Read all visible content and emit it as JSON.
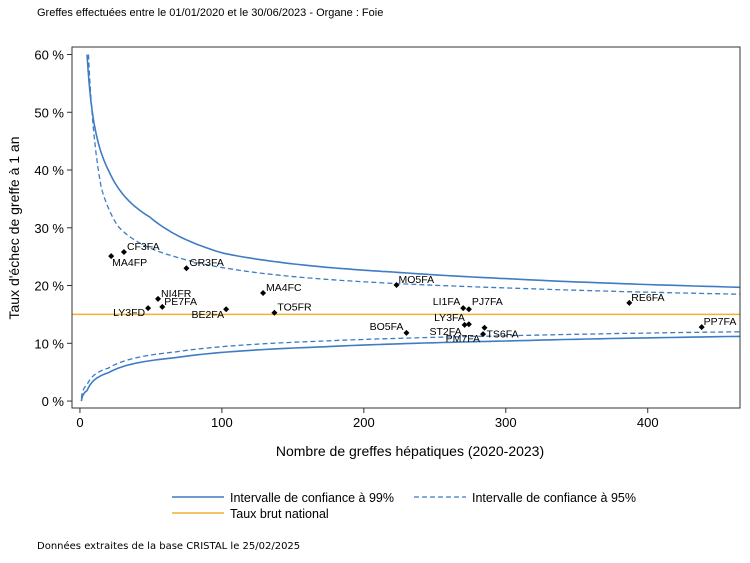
{
  "chart_data": {
    "type": "scatter",
    "title": "Greffes effectuées entre le 01/01/2020 et le 30/06/2023 - Organe : Foie",
    "xlabel": "Nombre de greffes hépatiques (2020-2023)",
    "ylabel": "Taux d'échec de greffe à 1 an",
    "xlim": [
      -5.6,
      465
    ],
    "ylim": [
      -1.2,
      61.3
    ],
    "xticks": [
      0,
      100,
      200,
      300,
      400
    ],
    "xtick_labels": [
      "0",
      "100",
      "200",
      "300",
      "400"
    ],
    "yticks": [
      0,
      10,
      20,
      30,
      40,
      50,
      60
    ],
    "ytick_labels": [
      "0 %",
      "10 %",
      "20 %",
      "30 %",
      "40 %",
      "50 %",
      "60 %"
    ],
    "national_rate": 15,
    "points": [
      {
        "label": "MA4FP",
        "n": 22,
        "rate": 25.1
      },
      {
        "label": "CF3FA",
        "n": 31,
        "rate": 25.8
      },
      {
        "label": "GR3FA",
        "n": 75,
        "rate": 23.0
      },
      {
        "label": "NI4FR",
        "n": 55,
        "rate": 17.7
      },
      {
        "label": "PE7FA",
        "n": 58,
        "rate": 16.3
      },
      {
        "label": "LY3FD",
        "n": 48,
        "rate": 16.1
      },
      {
        "label": "BE2FA",
        "n": 103,
        "rate": 15.9
      },
      {
        "label": "MA4FC",
        "n": 129,
        "rate": 18.7
      },
      {
        "label": "TO5FR",
        "n": 137,
        "rate": 15.3
      },
      {
        "label": "MO5FA",
        "n": 223,
        "rate": 20.1
      },
      {
        "label": "LI1FA",
        "n": 270,
        "rate": 16.1
      },
      {
        "label": "PJ7FA",
        "n": 274,
        "rate": 15.9
      },
      {
        "label": "LY3FA",
        "n": 274,
        "rate": 13.3
      },
      {
        "label": "ST2FA",
        "n": 271,
        "rate": 13.2
      },
      {
        "label": "PM7FA",
        "n": 284,
        "rate": 11.6
      },
      {
        "label": "TS6FA",
        "n": 285,
        "rate": 12.7
      },
      {
        "label": "BO5FA",
        "n": 230,
        "rate": 11.8
      },
      {
        "label": "RE6FA",
        "n": 387,
        "rate": 17.0
      },
      {
        "label": "PP7FA",
        "n": 438,
        "rate": 12.8
      }
    ],
    "curves": {
      "upper99": [
        [
          5,
          60
        ],
        [
          10,
          48
        ],
        [
          20,
          40
        ],
        [
          49,
          31.9
        ],
        [
          101,
          25.6
        ],
        [
          172,
          23.2
        ],
        [
          223,
          22.3
        ],
        [
          300,
          21.2
        ],
        [
          465,
          19.7
        ]
      ],
      "upper95": [
        [
          6,
          60
        ],
        [
          15,
          37
        ],
        [
          27,
          30.2
        ],
        [
          67,
          25
        ],
        [
          172,
          21.1
        ],
        [
          300,
          19.6
        ],
        [
          465,
          18.5
        ]
      ],
      "lower99": [
        [
          1,
          0
        ],
        [
          5,
          1.8
        ],
        [
          20,
          4.9
        ],
        [
          67,
          7.5
        ],
        [
          172,
          9.4
        ],
        [
          300,
          10.4
        ],
        [
          465,
          11.2
        ]
      ],
      "lower95": [
        [
          1,
          0.5
        ],
        [
          5,
          2.8
        ],
        [
          20,
          5.7
        ],
        [
          67,
          8.5
        ],
        [
          172,
          10.4
        ],
        [
          300,
          11.3
        ],
        [
          465,
          12.0
        ]
      ]
    },
    "legend": {
      "ci99": "Intervalle de confiance à 99%",
      "ci95": "Intervalle de confiance à 95%",
      "national": "Taux brut national"
    },
    "colors": {
      "ci": "#3f7cc4",
      "national": "#f0b030",
      "points": "#000000"
    }
  },
  "footer": "Données extraites de la base CRISTAL le 25/02/2025"
}
